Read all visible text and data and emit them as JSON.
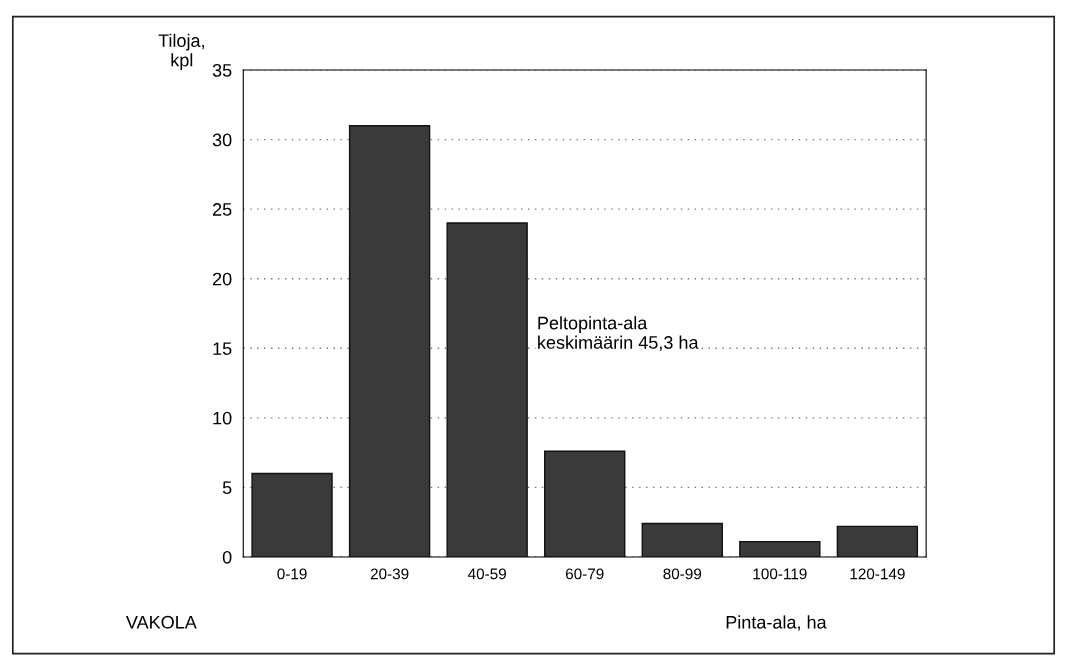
{
  "chart_data": {
    "type": "bar",
    "ylabel": "Tiloja,\nkpl",
    "xlabel": "Pinta-ala, ha",
    "categories": [
      "0-19",
      "20-39",
      "40-59",
      "60-79",
      "80-99",
      "100-119",
      "120-149"
    ],
    "values": [
      6,
      31,
      24,
      7.6,
      2.4,
      1.1,
      2.2
    ],
    "color": "#3a3a3a",
    "ylim": [
      0,
      35
    ],
    "yticks": [
      0,
      5,
      10,
      15,
      20,
      25,
      30,
      35
    ],
    "grid": "y",
    "legend": false,
    "annotations": [
      "Peltopinta-ala\nkeskimäärin 45,3 ha",
      "VAKOLA"
    ]
  }
}
